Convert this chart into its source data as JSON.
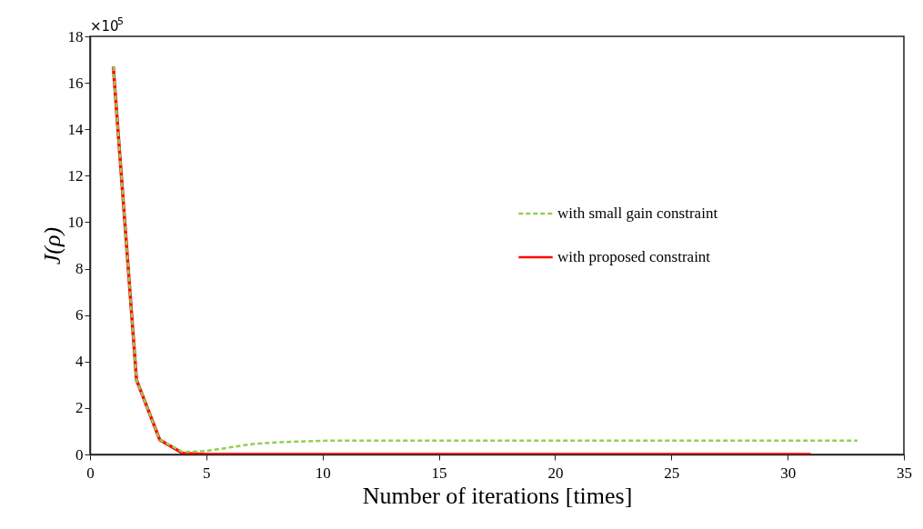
{
  "chart_data": {
    "type": "line",
    "xlabel": "Number of iterations [times]",
    "ylabel": "J(ρ)",
    "xlim": [
      0,
      35
    ],
    "xticks": [
      0,
      5,
      10,
      15,
      20,
      25,
      30,
      35
    ],
    "ylim": [
      0,
      18
    ],
    "yticks": [
      0,
      2,
      4,
      6,
      8,
      10,
      12,
      14,
      16,
      18
    ],
    "grid": false,
    "legend": "right",
    "annotations": [
      "×10$^{5}$"
    ],
    "series": [
      {
        "name": "with small gain constraint",
        "color": "#92d050",
        "line_style": "dashed",
        "x": [
          1,
          2,
          3,
          4,
          5,
          6,
          7,
          8,
          9,
          10,
          11,
          12,
          13,
          14,
          15,
          16,
          17,
          18,
          19,
          20,
          21,
          22,
          23,
          24,
          25,
          26,
          27,
          28,
          29,
          30,
          31,
          32,
          33
        ],
        "values": [
          16.7,
          3.2,
          0.63,
          0.1,
          0.15,
          0.3,
          0.45,
          0.52,
          0.56,
          0.59,
          0.6,
          0.6,
          0.6,
          0.6,
          0.6,
          0.6,
          0.6,
          0.6,
          0.6,
          0.6,
          0.6,
          0.6,
          0.6,
          0.6,
          0.6,
          0.6,
          0.6,
          0.6,
          0.6,
          0.6,
          0.6,
          0.6,
          0.6
        ]
      },
      {
        "name": "with proposed constraint",
        "color": "#ff0000",
        "line_style": "solid",
        "x": [
          1,
          2,
          3,
          4,
          5,
          6,
          7,
          8,
          9,
          10,
          11,
          12,
          13,
          14,
          15,
          16,
          17,
          18,
          19,
          20,
          21,
          22,
          23,
          24,
          25,
          26,
          27,
          28,
          29,
          30,
          31
        ],
        "values": [
          16.7,
          3.2,
          0.63,
          0.05,
          0,
          0,
          0,
          0,
          0,
          0,
          0,
          0,
          0,
          0,
          0,
          0,
          0,
          0,
          0,
          0,
          0,
          0,
          0,
          0,
          0,
          0,
          0,
          0,
          0,
          0,
          0
        ]
      }
    ]
  }
}
